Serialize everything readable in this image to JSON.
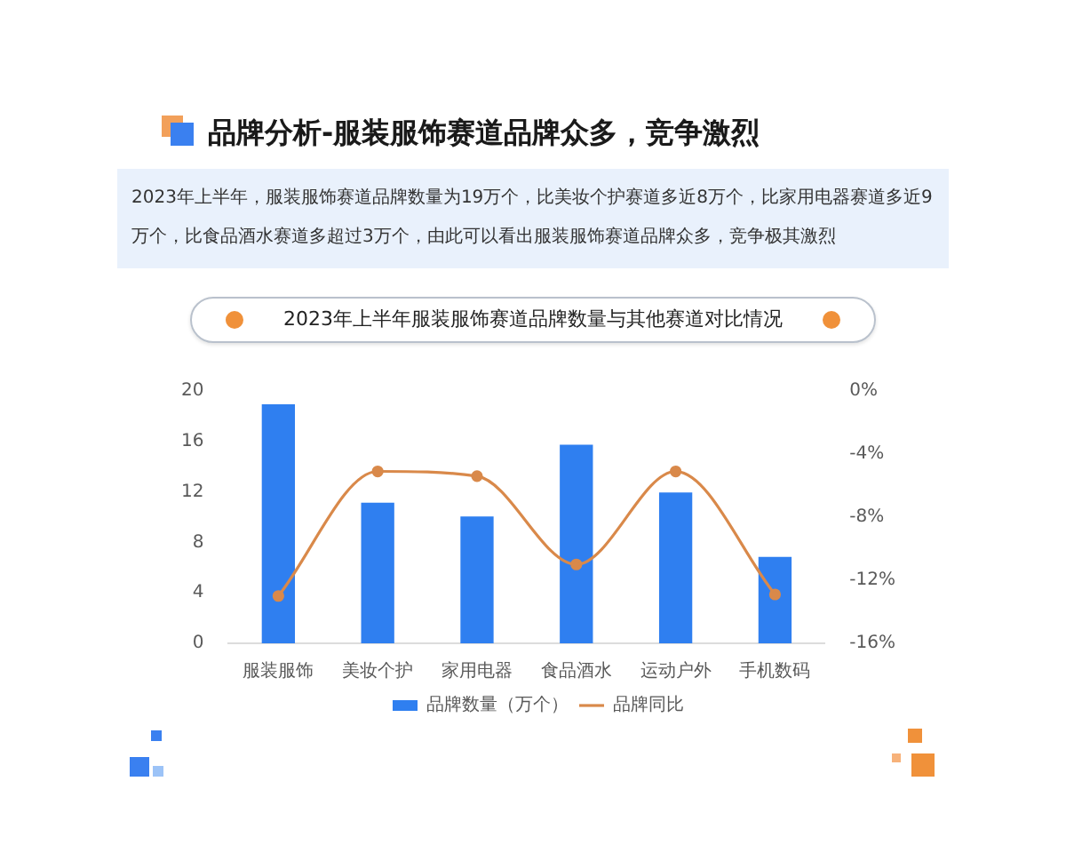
{
  "chart_data": {
    "type": "bar",
    "title": "品牌分析-服装服饰赛道品牌众多，竞争激烈",
    "annotations": [
      "2023年上半年，服装服饰赛道品牌数量为19万个，比美妆个护赛道多近8万个，比家用电器赛道多近9万个，比食品酒水赛道多超过3万个，由此可以看出服装服饰赛道品牌众多，竞争极其激烈"
    ],
    "subtitle": "2023年上半年服装服饰赛道品牌数量与其他赛道对比情况",
    "categories": [
      "服装服饰",
      "美妆个护",
      "家用电器",
      "食品酒水",
      "运动户外",
      "手机数码"
    ],
    "series": [
      {
        "name": "品牌数量（万个）",
        "color": "#2f7ff0",
        "values": [
          18.9,
          11.1,
          10.0,
          15.7,
          11.9,
          6.8
        ]
      },
      {
        "name": "品牌同比",
        "type": "line",
        "axis": "y2",
        "color": "#d9894a",
        "values": [
          -13.0,
          -5.1,
          -5.4,
          -11.0,
          -5.1,
          -12.9
        ]
      }
    ],
    "ylim": [
      0,
      20
    ],
    "yticks": [
      0,
      4,
      8,
      12,
      16,
      20
    ],
    "y2lim": [
      -16,
      0
    ],
    "y2ticks": [
      {
        "value": 0,
        "label": "0%"
      },
      {
        "value": -4,
        "label": "-4%"
      },
      {
        "value": -8,
        "label": "-8%"
      },
      {
        "value": -12,
        "label": "-12%"
      },
      {
        "value": -16,
        "label": "-16%"
      }
    ],
    "grid": false,
    "legend": "bottom",
    "marker": "circle"
  }
}
